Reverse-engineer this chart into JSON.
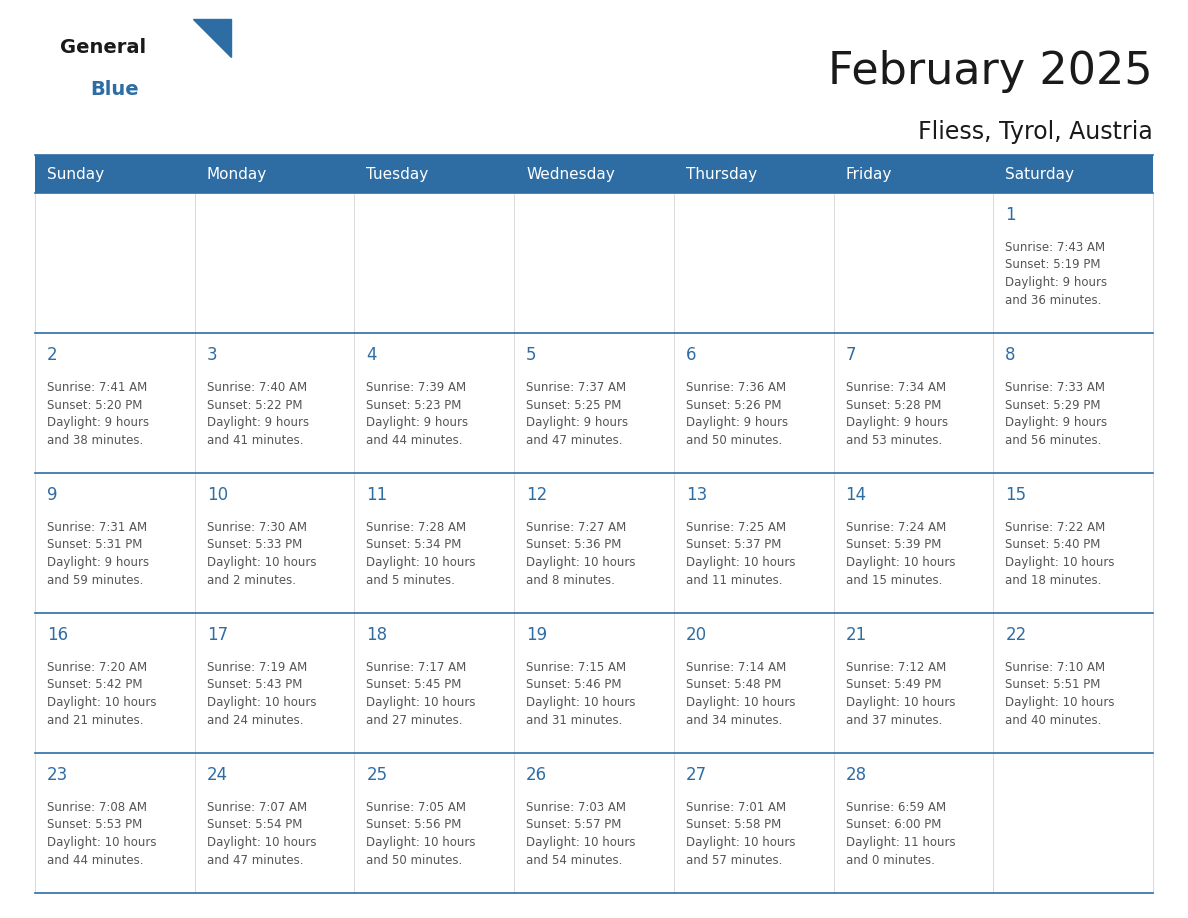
{
  "title": "February 2025",
  "subtitle": "Fliess, Tyrol, Austria",
  "header_bg_color": "#2E6DA4",
  "header_text_color": "#FFFFFF",
  "day_names": [
    "Sunday",
    "Monday",
    "Tuesday",
    "Wednesday",
    "Thursday",
    "Friday",
    "Saturday"
  ],
  "bg_color": "#FFFFFF",
  "cell_bg_color": "#FFFFFF",
  "grid_line_color": "#2E6DA4",
  "day_number_color": "#2E6DA4",
  "info_text_color": "#555555",
  "title_color": "#1a1a1a",
  "subtitle_color": "#1a1a1a",
  "logo_general_color": "#1a1a1a",
  "logo_blue_color": "#2E6DA4",
  "calendar": [
    [
      null,
      null,
      null,
      null,
      null,
      null,
      {
        "day": 1,
        "sunrise": "7:43 AM",
        "sunset": "5:19 PM",
        "daylight": "9 hours\nand 36 minutes."
      }
    ],
    [
      {
        "day": 2,
        "sunrise": "7:41 AM",
        "sunset": "5:20 PM",
        "daylight": "9 hours\nand 38 minutes."
      },
      {
        "day": 3,
        "sunrise": "7:40 AM",
        "sunset": "5:22 PM",
        "daylight": "9 hours\nand 41 minutes."
      },
      {
        "day": 4,
        "sunrise": "7:39 AM",
        "sunset": "5:23 PM",
        "daylight": "9 hours\nand 44 minutes."
      },
      {
        "day": 5,
        "sunrise": "7:37 AM",
        "sunset": "5:25 PM",
        "daylight": "9 hours\nand 47 minutes."
      },
      {
        "day": 6,
        "sunrise": "7:36 AM",
        "sunset": "5:26 PM",
        "daylight": "9 hours\nand 50 minutes."
      },
      {
        "day": 7,
        "sunrise": "7:34 AM",
        "sunset": "5:28 PM",
        "daylight": "9 hours\nand 53 minutes."
      },
      {
        "day": 8,
        "sunrise": "7:33 AM",
        "sunset": "5:29 PM",
        "daylight": "9 hours\nand 56 minutes."
      }
    ],
    [
      {
        "day": 9,
        "sunrise": "7:31 AM",
        "sunset": "5:31 PM",
        "daylight": "9 hours\nand 59 minutes."
      },
      {
        "day": 10,
        "sunrise": "7:30 AM",
        "sunset": "5:33 PM",
        "daylight": "10 hours\nand 2 minutes."
      },
      {
        "day": 11,
        "sunrise": "7:28 AM",
        "sunset": "5:34 PM",
        "daylight": "10 hours\nand 5 minutes."
      },
      {
        "day": 12,
        "sunrise": "7:27 AM",
        "sunset": "5:36 PM",
        "daylight": "10 hours\nand 8 minutes."
      },
      {
        "day": 13,
        "sunrise": "7:25 AM",
        "sunset": "5:37 PM",
        "daylight": "10 hours\nand 11 minutes."
      },
      {
        "day": 14,
        "sunrise": "7:24 AM",
        "sunset": "5:39 PM",
        "daylight": "10 hours\nand 15 minutes."
      },
      {
        "day": 15,
        "sunrise": "7:22 AM",
        "sunset": "5:40 PM",
        "daylight": "10 hours\nand 18 minutes."
      }
    ],
    [
      {
        "day": 16,
        "sunrise": "7:20 AM",
        "sunset": "5:42 PM",
        "daylight": "10 hours\nand 21 minutes."
      },
      {
        "day": 17,
        "sunrise": "7:19 AM",
        "sunset": "5:43 PM",
        "daylight": "10 hours\nand 24 minutes."
      },
      {
        "day": 18,
        "sunrise": "7:17 AM",
        "sunset": "5:45 PM",
        "daylight": "10 hours\nand 27 minutes."
      },
      {
        "day": 19,
        "sunrise": "7:15 AM",
        "sunset": "5:46 PM",
        "daylight": "10 hours\nand 31 minutes."
      },
      {
        "day": 20,
        "sunrise": "7:14 AM",
        "sunset": "5:48 PM",
        "daylight": "10 hours\nand 34 minutes."
      },
      {
        "day": 21,
        "sunrise": "7:12 AM",
        "sunset": "5:49 PM",
        "daylight": "10 hours\nand 37 minutes."
      },
      {
        "day": 22,
        "sunrise": "7:10 AM",
        "sunset": "5:51 PM",
        "daylight": "10 hours\nand 40 minutes."
      }
    ],
    [
      {
        "day": 23,
        "sunrise": "7:08 AM",
        "sunset": "5:53 PM",
        "daylight": "10 hours\nand 44 minutes."
      },
      {
        "day": 24,
        "sunrise": "7:07 AM",
        "sunset": "5:54 PM",
        "daylight": "10 hours\nand 47 minutes."
      },
      {
        "day": 25,
        "sunrise": "7:05 AM",
        "sunset": "5:56 PM",
        "daylight": "10 hours\nand 50 minutes."
      },
      {
        "day": 26,
        "sunrise": "7:03 AM",
        "sunset": "5:57 PM",
        "daylight": "10 hours\nand 54 minutes."
      },
      {
        "day": 27,
        "sunrise": "7:01 AM",
        "sunset": "5:58 PM",
        "daylight": "10 hours\nand 57 minutes."
      },
      {
        "day": 28,
        "sunrise": "6:59 AM",
        "sunset": "6:00 PM",
        "daylight": "11 hours\nand 0 minutes."
      },
      null
    ]
  ],
  "figsize": [
    11.88,
    9.18
  ],
  "dpi": 100
}
